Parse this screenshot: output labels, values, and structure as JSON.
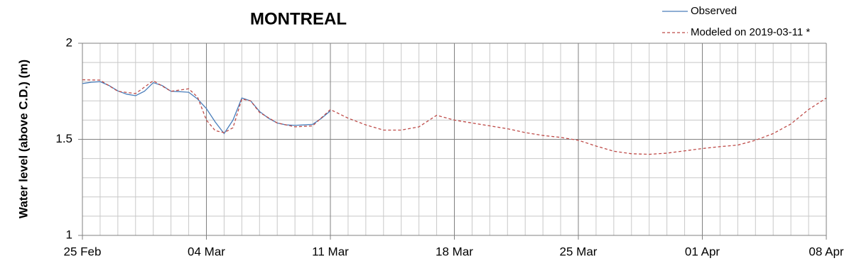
{
  "chart_data": {
    "type": "line",
    "title": "MONTREAL",
    "ylabel": "Water level (above C.D.) (m)",
    "xlim": [
      0,
      42
    ],
    "xticks": [
      {
        "value": 0,
        "label": "25 Feb"
      },
      {
        "value": 7,
        "label": "04 Mar"
      },
      {
        "value": 14,
        "label": "11 Mar"
      },
      {
        "value": 21,
        "label": "18 Mar"
      },
      {
        "value": 28,
        "label": "25 Mar"
      },
      {
        "value": 35,
        "label": "01 Apr"
      },
      {
        "value": 42,
        "label": "08 Apr"
      }
    ],
    "minor_xticks": [
      1,
      2,
      3,
      4,
      5,
      6,
      8,
      9,
      10,
      11,
      12,
      13,
      15,
      16,
      17,
      18,
      19,
      20,
      22,
      23,
      24,
      25,
      26,
      27,
      29,
      30,
      31,
      32,
      33,
      34,
      36,
      37,
      38,
      39,
      40,
      41
    ],
    "ylim": [
      1,
      2
    ],
    "yticks": [
      1,
      1.5,
      2
    ],
    "minor_yticks": [
      1.1,
      1.2,
      1.3,
      1.4,
      1.6,
      1.7,
      1.8,
      1.9
    ],
    "grid": true,
    "legend": "top-right",
    "series": [
      {
        "name": "Observed",
        "color": "#4a7ebb",
        "dash": false,
        "x": [
          0,
          0.5,
          1,
          1.5,
          2,
          2.5,
          3,
          3.5,
          4,
          4.5,
          5,
          5.5,
          6,
          6.5,
          7,
          7.5,
          8,
          8.5,
          9,
          9.5,
          10,
          10.5,
          11,
          11.5,
          12,
          12.5,
          13,
          13.5,
          14
        ],
        "values": [
          1.79,
          1.797,
          1.8,
          1.78,
          1.752,
          1.735,
          1.727,
          1.75,
          1.795,
          1.78,
          1.75,
          1.748,
          1.745,
          1.71,
          1.66,
          1.59,
          1.53,
          1.6,
          1.715,
          1.7,
          1.645,
          1.61,
          1.585,
          1.575,
          1.573,
          1.575,
          1.578,
          1.61,
          1.648
        ]
      },
      {
        "name": "Modeled on 2019-03-11 *",
        "color": "#be4b48",
        "dash": true,
        "x": [
          0,
          1,
          2,
          3,
          4,
          5,
          6,
          6.5,
          7,
          7.5,
          8,
          8.5,
          9,
          9.5,
          10,
          11,
          12,
          13,
          14,
          15,
          16,
          17,
          18,
          19,
          20,
          21,
          22,
          23,
          24,
          25,
          26,
          27,
          28,
          29,
          30,
          31,
          32,
          33,
          34,
          35,
          36,
          37,
          38,
          39,
          40,
          41,
          42
        ],
        "values": [
          1.81,
          1.808,
          1.75,
          1.738,
          1.805,
          1.75,
          1.763,
          1.72,
          1.6,
          1.545,
          1.535,
          1.56,
          1.71,
          1.7,
          1.64,
          1.585,
          1.565,
          1.57,
          1.655,
          1.61,
          1.575,
          1.548,
          1.548,
          1.565,
          1.625,
          1.6,
          1.585,
          1.57,
          1.555,
          1.535,
          1.52,
          1.51,
          1.495,
          1.465,
          1.438,
          1.425,
          1.422,
          1.428,
          1.44,
          1.452,
          1.462,
          1.47,
          1.495,
          1.53,
          1.58,
          1.655,
          1.715
        ]
      }
    ]
  }
}
